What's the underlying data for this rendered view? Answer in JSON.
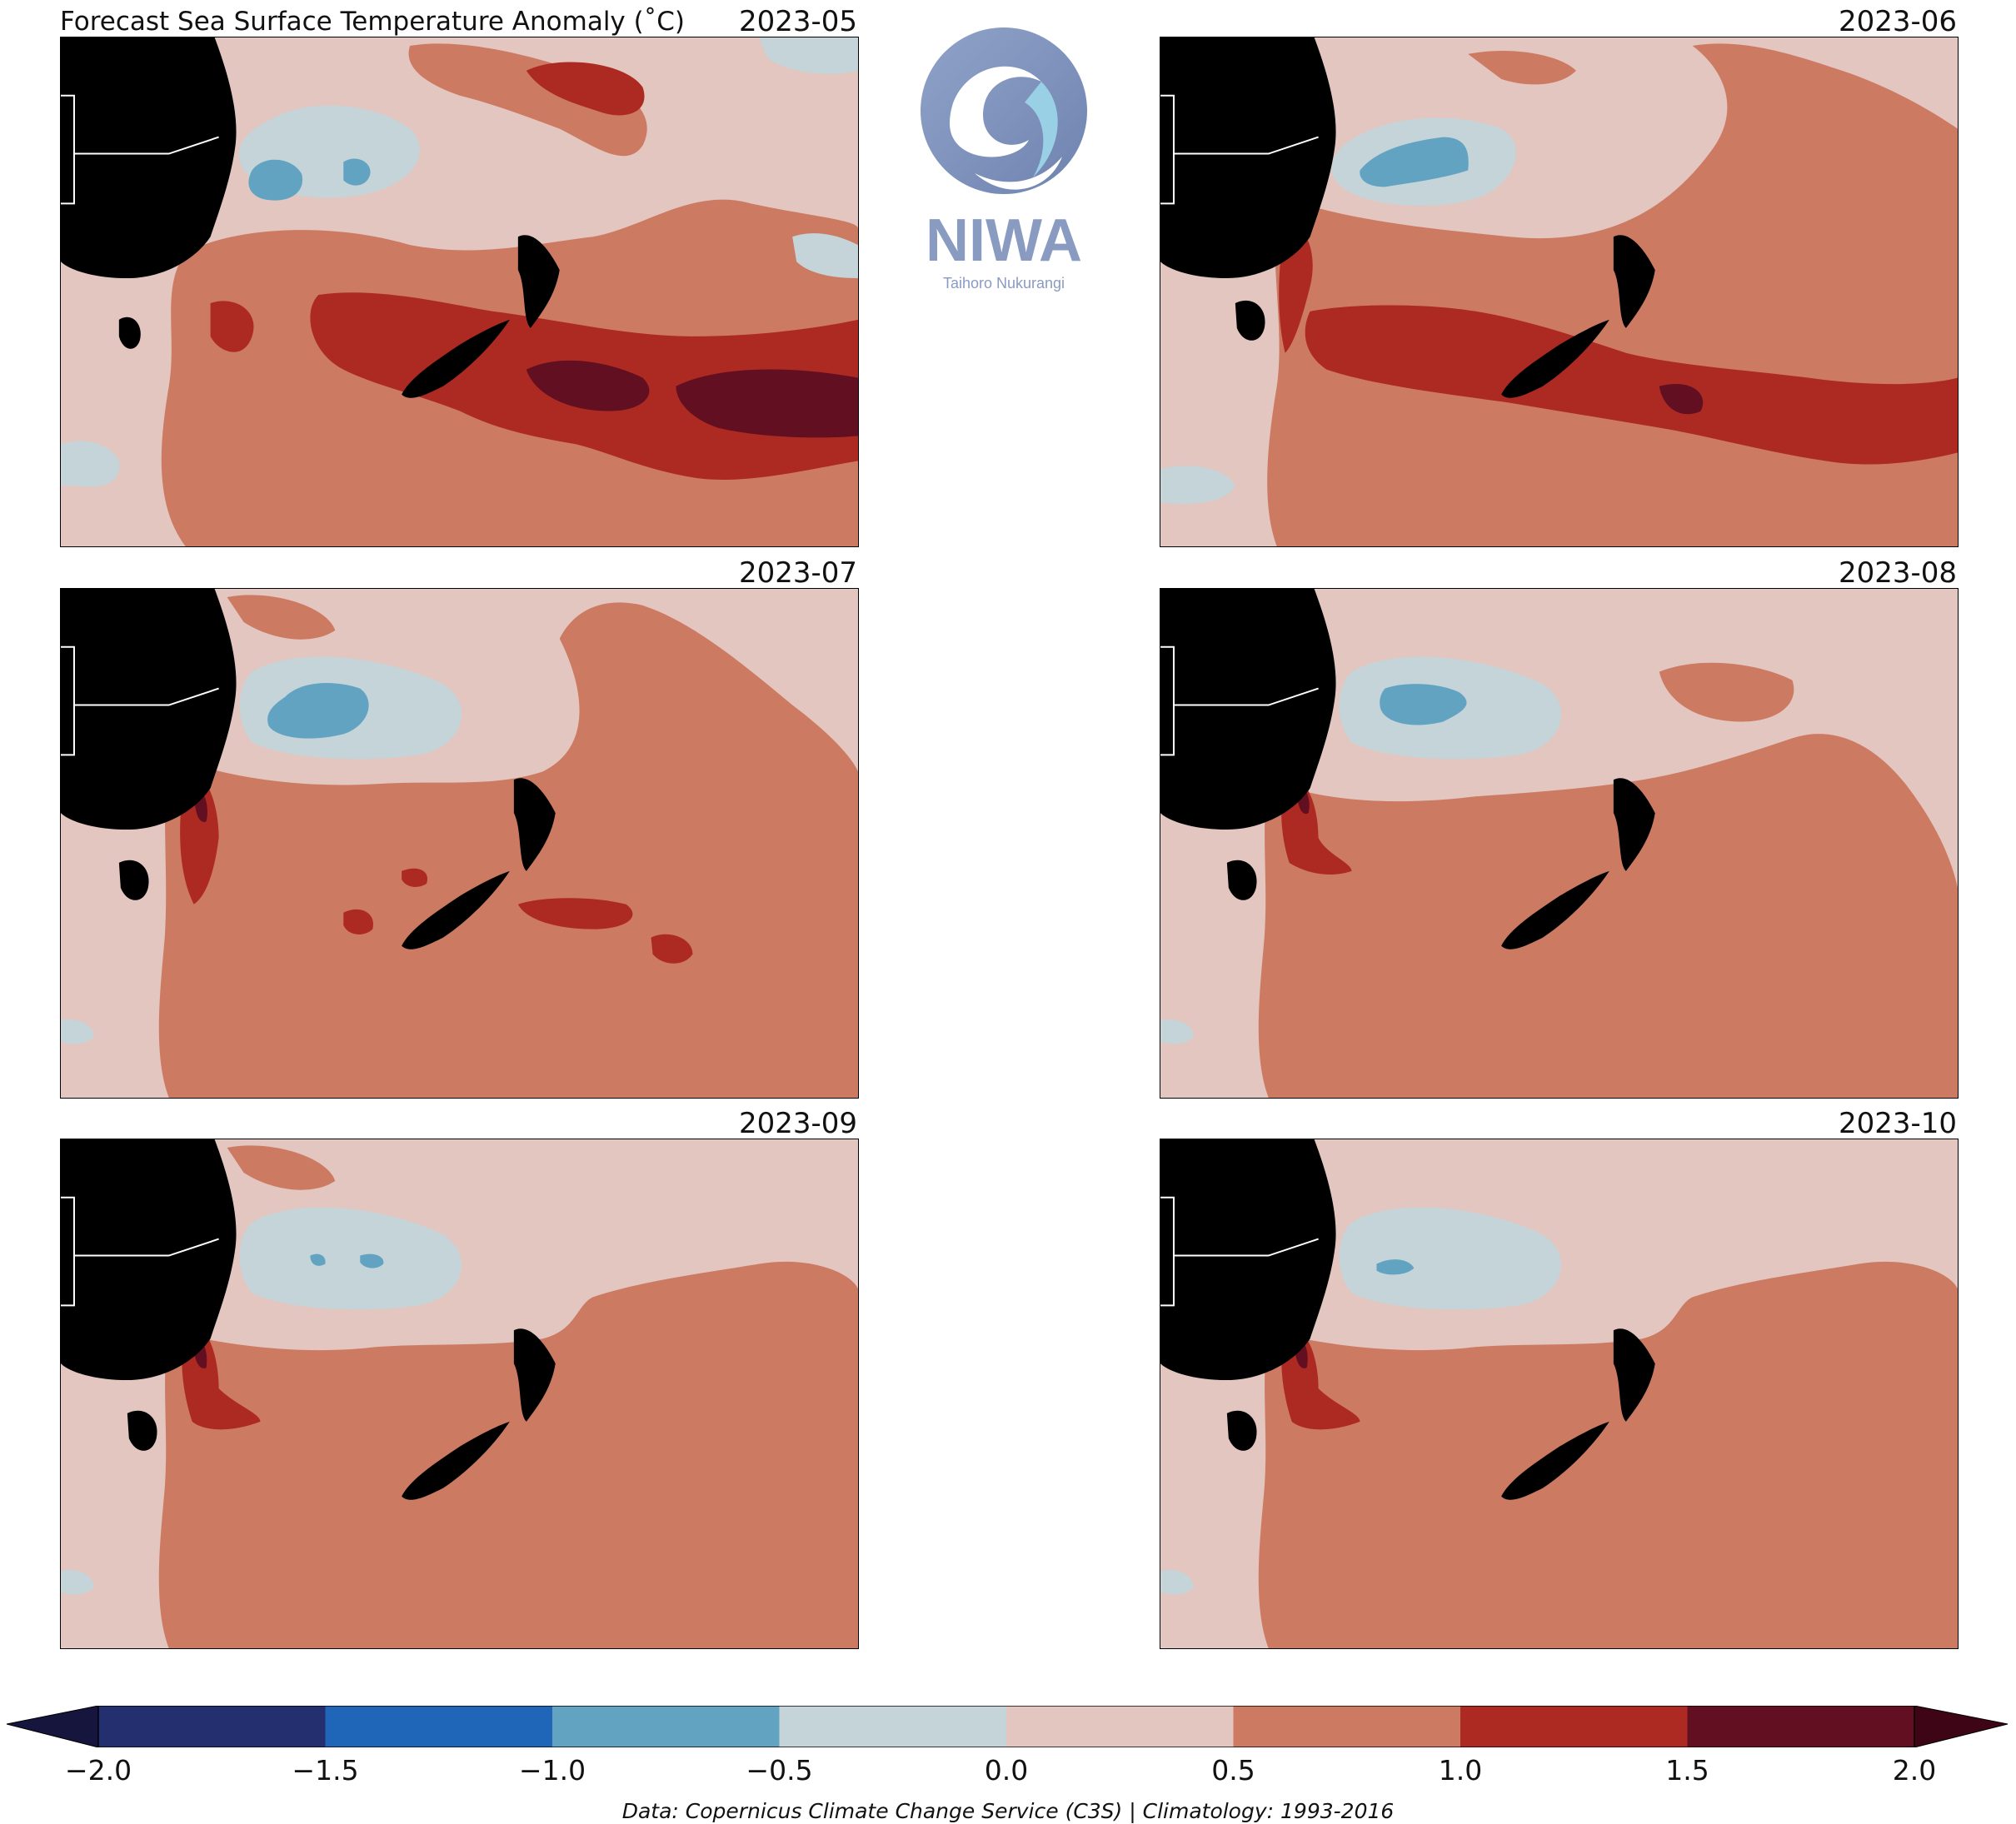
{
  "title": "Forecast Sea Surface Temperature Anomaly (˚C)",
  "panels": [
    {
      "label": "2023-05"
    },
    {
      "label": "2023-06"
    },
    {
      "label": "2023-07"
    },
    {
      "label": "2023-08"
    },
    {
      "label": "2023-09"
    },
    {
      "label": "2023-10"
    }
  ],
  "logo": {
    "name": "NIWA",
    "tagline": "Taihoro Nukurangi"
  },
  "colorbar": {
    "ticks": [
      "−2.0",
      "−1.5",
      "−1.0",
      "−0.5",
      "0.0",
      "0.5",
      "1.0",
      "1.5",
      "2.0"
    ],
    "colors": [
      "#232f6e",
      "#1f65b8",
      "#63a3c2",
      "#c4d4d9",
      "#e3c6bf",
      "#cd7a63",
      "#ad2a22",
      "#620f21"
    ],
    "under_color": "#15153d",
    "over_color": "#3d0515"
  },
  "credit": "Data: Copernicus Climate Change Service (C3S) | Climatology: 1993-2016"
}
